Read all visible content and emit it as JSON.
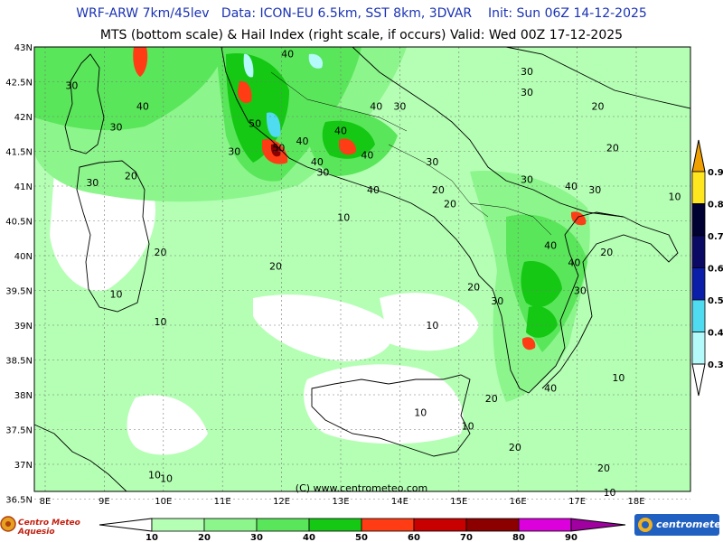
{
  "header": {
    "line1": "WRF-ARW 7km/45lev   Data: ICON-EU 6.5km, SST 8km, 3DVAR    Init: Sun 06Z 14-12-2025",
    "line2": "MTS (bottom scale) & Hail Index (right scale, if occurs) Valid: Wed 00Z 17-12-2025"
  },
  "axes": {
    "lat_labels": [
      "43N",
      "42.5N",
      "42N",
      "41.5N",
      "41N",
      "40.5N",
      "40N",
      "39.5N",
      "39N",
      "38.5N",
      "38N",
      "37.5N",
      "37N",
      "36.5N"
    ],
    "lon_labels": [
      "8E",
      "9E",
      "10E",
      "11E",
      "12E",
      "13E",
      "14E",
      "15E",
      "16E",
      "17E",
      "18E"
    ]
  },
  "contour_labels": [
    {
      "text": "30",
      "lon": 8.45,
      "lat": 42.45
    },
    {
      "text": "40",
      "lon": 9.65,
      "lat": 42.15
    },
    {
      "text": "30",
      "lon": 9.2,
      "lat": 41.85
    },
    {
      "text": "30",
      "lon": 8.8,
      "lat": 41.05
    },
    {
      "text": "20",
      "lon": 9.45,
      "lat": 41.15
    },
    {
      "text": "20",
      "lon": 9.95,
      "lat": 40.05
    },
    {
      "text": "10",
      "lon": 9.2,
      "lat": 39.45
    },
    {
      "text": "10",
      "lon": 9.95,
      "lat": 39.05
    },
    {
      "text": "30",
      "lon": 11.2,
      "lat": 41.5
    },
    {
      "text": "50",
      "lon": 11.55,
      "lat": 41.9
    },
    {
      "text": "50",
      "lon": 11.95,
      "lat": 41.55
    },
    {
      "text": "40",
      "lon": 12.1,
      "lat": 42.9
    },
    {
      "text": "40",
      "lon": 12.35,
      "lat": 41.65
    },
    {
      "text": "40",
      "lon": 12.6,
      "lat": 41.35
    },
    {
      "text": "30",
      "lon": 12.7,
      "lat": 41.2
    },
    {
      "text": "40",
      "lon": 13.0,
      "lat": 41.8
    },
    {
      "text": "40",
      "lon": 13.45,
      "lat": 41.45
    },
    {
      "text": "40",
      "lon": 13.6,
      "lat": 42.15
    },
    {
      "text": "40",
      "lon": 13.55,
      "lat": 40.95
    },
    {
      "text": "30",
      "lon": 14.0,
      "lat": 42.15
    },
    {
      "text": "30",
      "lon": 14.55,
      "lat": 41.35
    },
    {
      "text": "20",
      "lon": 14.65,
      "lat": 40.95
    },
    {
      "text": "20",
      "lon": 14.85,
      "lat": 40.75
    },
    {
      "text": "10",
      "lon": 13.05,
      "lat": 40.55
    },
    {
      "text": "20",
      "lon": 11.9,
      "lat": 39.85
    },
    {
      "text": "30",
      "lon": 16.15,
      "lat": 42.65
    },
    {
      "text": "30",
      "lon": 16.15,
      "lat": 42.35
    },
    {
      "text": "20",
      "lon": 17.35,
      "lat": 42.15
    },
    {
      "text": "20",
      "lon": 17.6,
      "lat": 41.55
    },
    {
      "text": "30",
      "lon": 16.15,
      "lat": 41.1
    },
    {
      "text": "40",
      "lon": 16.9,
      "lat": 41.0
    },
    {
      "text": "30",
      "lon": 17.3,
      "lat": 40.95
    },
    {
      "text": "10",
      "lon": 18.65,
      "lat": 40.85
    },
    {
      "text": "40",
      "lon": 16.55,
      "lat": 40.15
    },
    {
      "text": "40",
      "lon": 16.95,
      "lat": 39.9
    },
    {
      "text": "20",
      "lon": 17.5,
      "lat": 40.05
    },
    {
      "text": "20",
      "lon": 15.25,
      "lat": 39.55
    },
    {
      "text": "30",
      "lon": 15.65,
      "lat": 39.35
    },
    {
      "text": "30",
      "lon": 17.05,
      "lat": 39.5
    },
    {
      "text": "10",
      "lon": 14.55,
      "lat": 39.0
    },
    {
      "text": "40",
      "lon": 16.55,
      "lat": 38.1
    },
    {
      "text": "20",
      "lon": 15.55,
      "lat": 37.95
    },
    {
      "text": "10",
      "lon": 17.7,
      "lat": 38.25
    },
    {
      "text": "10",
      "lon": 14.35,
      "lat": 37.75
    },
    {
      "text": "10",
      "lon": 15.15,
      "lat": 37.55
    },
    {
      "text": "20",
      "lon": 15.95,
      "lat": 37.25
    },
    {
      "text": "20",
      "lon": 17.45,
      "lat": 36.95
    },
    {
      "text": "10",
      "lon": 17.55,
      "lat": 36.6
    },
    {
      "text": "10",
      "lon": 9.85,
      "lat": 36.85
    },
    {
      "text": "10",
      "lon": 10.05,
      "lat": 36.8
    }
  ],
  "credit": "(C) www.centrometeo.com",
  "mts_scale": {
    "ticks": [
      "10",
      "20",
      "30",
      "40",
      "50",
      "60",
      "70",
      "80",
      "90"
    ],
    "colors": [
      "#b4ffb4",
      "#8cf58c",
      "#5ae65a",
      "#14c814",
      "#ff3c14",
      "#c80000",
      "#8c0000",
      "#dc00dc",
      "#a000a0"
    ]
  },
  "hail_scale": {
    "ticks": [
      "0.9",
      "0.8",
      "0.7",
      "0.6",
      "0.5",
      "0.4",
      "0.3"
    ],
    "colors": [
      "#f0a000",
      "#ffe61e",
      "#000032",
      "#0a0a64",
      "#0a1eaa",
      "#50dcf0",
      "#b4fafa"
    ]
  },
  "logos": {
    "left": "Centro Meteo Aquesio",
    "right": "centrometeo"
  }
}
